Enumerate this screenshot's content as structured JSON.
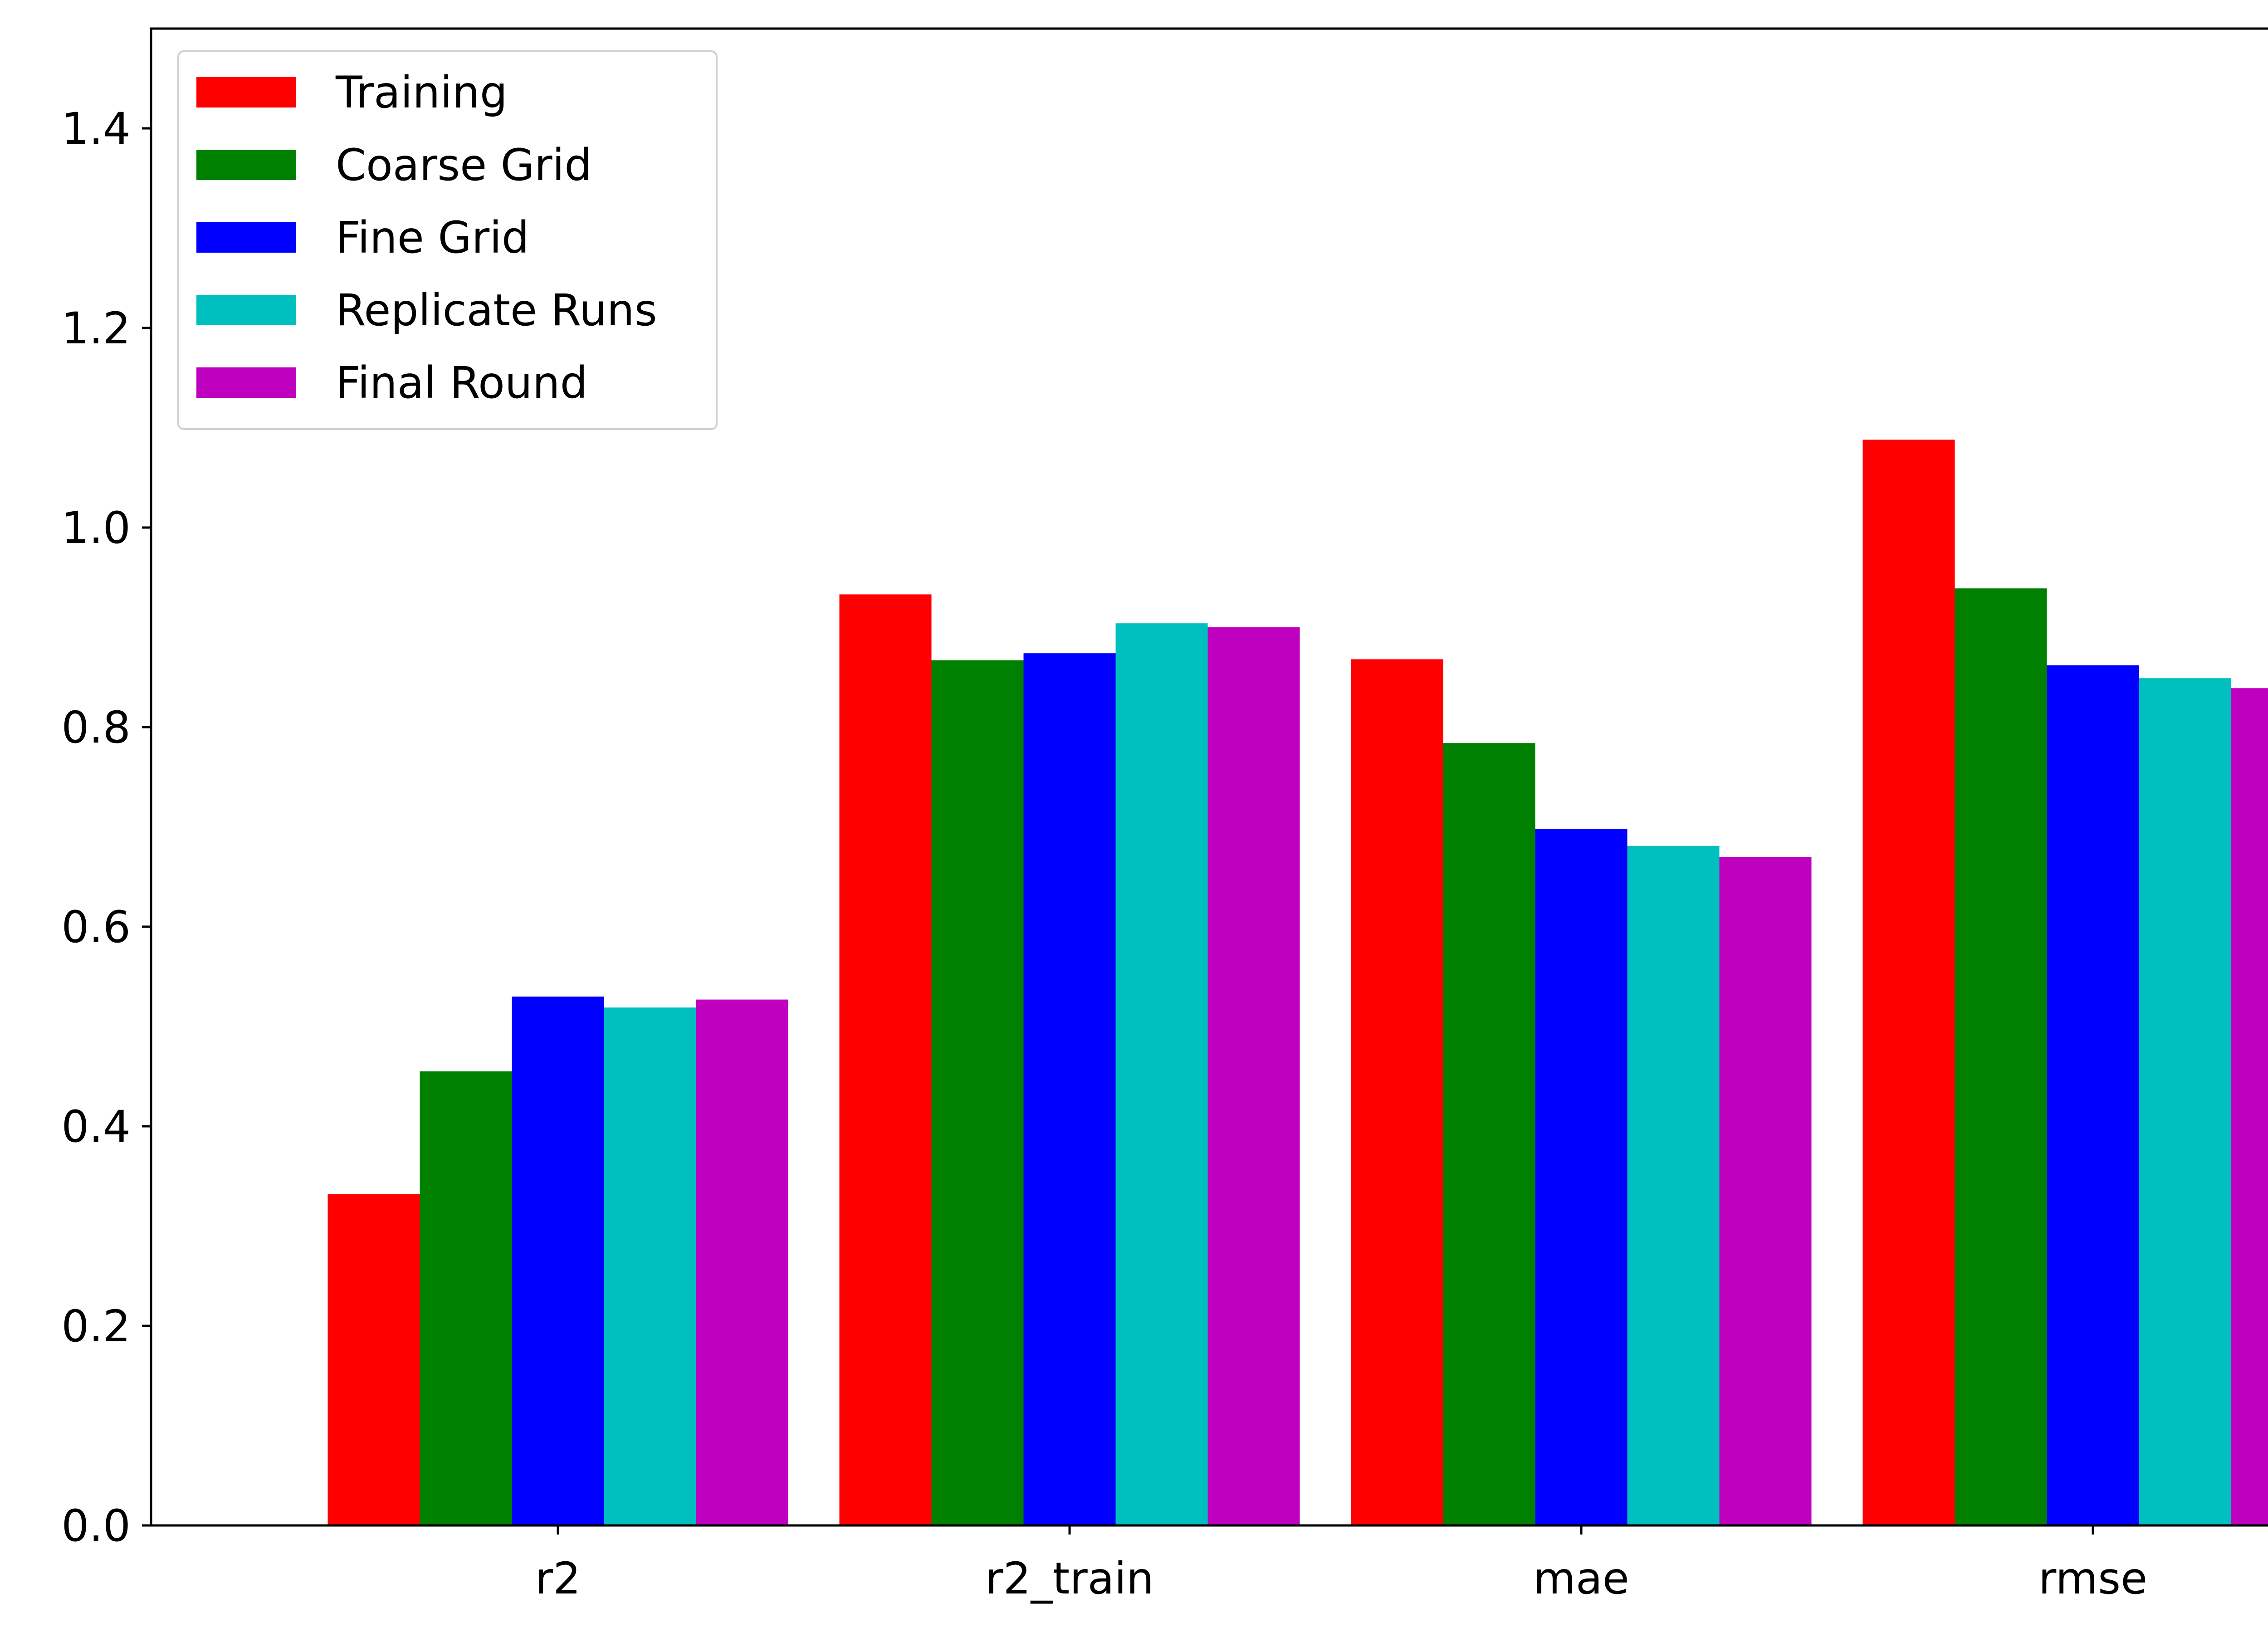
{
  "chart_data": {
    "type": "bar",
    "title": "",
    "xlabel": "",
    "ylabel": "",
    "categories": [
      "r2",
      "r2_train",
      "mae",
      "rmse"
    ],
    "series": [
      {
        "name": "Training",
        "color": "#ff0000",
        "values": [
          0.332,
          0.933,
          0.868,
          1.088
        ]
      },
      {
        "name": "Coarse Grid",
        "color": "#008000",
        "values": [
          0.455,
          0.867,
          0.784,
          0.939
        ]
      },
      {
        "name": "Fine Grid",
        "color": "#0000ff",
        "values": [
          0.53,
          0.874,
          0.698,
          0.862
        ]
      },
      {
        "name": "Replicate Runs",
        "color": "#00bfbf",
        "values": [
          0.519,
          0.904,
          0.681,
          0.849
        ]
      },
      {
        "name": "Final Round",
        "color": "#bf00bf",
        "values": [
          0.527,
          0.9,
          0.67,
          0.839
        ]
      }
    ],
    "ylim": [
      0,
      1.5
    ],
    "yticks": [
      "0.0",
      "0.2",
      "0.4",
      "0.6",
      "0.8",
      "1.0",
      "1.2",
      "1.4"
    ],
    "grid": false,
    "legend": {
      "position": "top-left"
    }
  }
}
